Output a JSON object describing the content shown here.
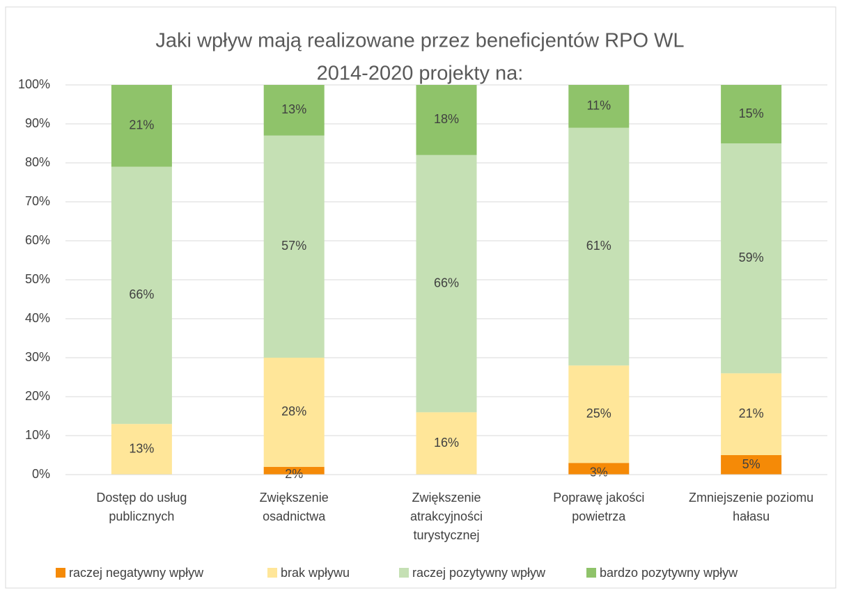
{
  "chart_data": {
    "type": "stacked_bar_percent",
    "title": [
      "Jaki wpływ mają realizowane przez beneficjentów RPO WL",
      "2014-2020 projekty na:"
    ],
    "categories": [
      [
        "Dostęp do usług",
        "publicznych"
      ],
      [
        "Zwiększenie",
        "osadnictwa"
      ],
      [
        "Zwiększenie",
        "atrakcyjności",
        "turystycznej"
      ],
      [
        "Poprawę jakości",
        "powietrza"
      ],
      [
        "Zmniejszenie poziomu",
        "hałasu"
      ]
    ],
    "series": [
      {
        "name": "raczej negatywny wpływ",
        "color": "#f58a07",
        "values": [
          0,
          2,
          0,
          3,
          5
        ],
        "value_labels": [
          null,
          "2%",
          null,
          "3%",
          "5%"
        ]
      },
      {
        "name": "brak wpływu",
        "color": "#ffe699",
        "values": [
          13,
          28,
          16,
          25,
          21
        ],
        "value_labels": [
          "13%",
          "28%",
          "16%",
          "25%",
          "21%"
        ]
      },
      {
        "name": "raczej pozytywny wpływ",
        "color": "#c5e0b4",
        "values": [
          66,
          57,
          66,
          61,
          59
        ],
        "value_labels": [
          "66%",
          "57%",
          "66%",
          "61%",
          "59%"
        ]
      },
      {
        "name": "bardzo pozytywny wpływ",
        "color": "#8fc36a",
        "values": [
          21,
          13,
          18,
          11,
          15
        ],
        "value_labels": [
          "21%",
          "13%",
          "18%",
          "11%",
          "15%"
        ]
      }
    ],
    "ylim": [
      0,
      100
    ],
    "yticks": [
      {
        "value": 0,
        "label": "0%"
      },
      {
        "value": 10,
        "label": "10%"
      },
      {
        "value": 20,
        "label": "20%"
      },
      {
        "value": 30,
        "label": "30%"
      },
      {
        "value": 40,
        "label": "40%"
      },
      {
        "value": 50,
        "label": "50%"
      },
      {
        "value": 60,
        "label": "60%"
      },
      {
        "value": 70,
        "label": "70%"
      },
      {
        "value": 80,
        "label": "80%"
      },
      {
        "value": 90,
        "label": "90%"
      },
      {
        "value": 100,
        "label": "100%"
      }
    ],
    "grid": true,
    "legend": "bottom"
  }
}
